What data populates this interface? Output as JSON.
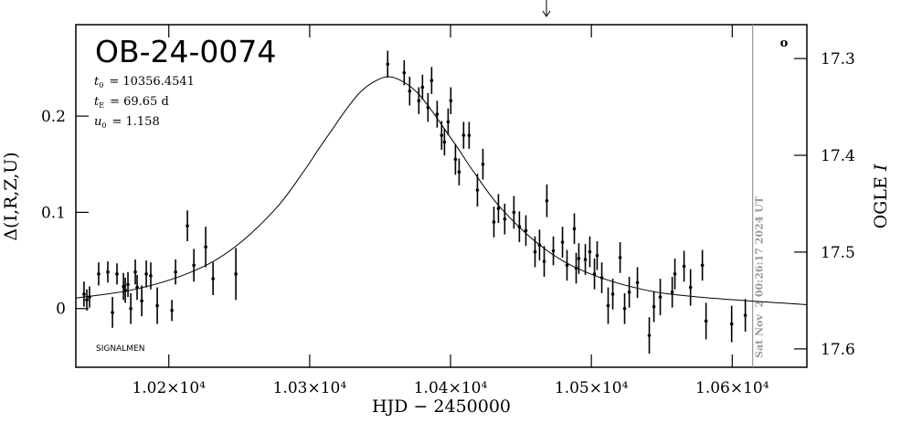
{
  "chart_data": {
    "type": "scatter",
    "title": "OB-24-0074",
    "xlabel": "HJD − 2450000",
    "ylabel": "Δ(I,R,Z,U)",
    "y2label": [
      "OGLE",
      "I"
    ],
    "annotations": [
      {
        "symbol": "t",
        "sub": "0",
        "text": "= 10356.4541"
      },
      {
        "symbol": "t",
        "sub": "E",
        "text": "= 69.65 d"
      },
      {
        "symbol": "u",
        "sub": "0",
        "text": "= 1.158"
      }
    ],
    "footnote": "SIGNALMEN",
    "corner_mark": "o",
    "timestamp": "Sat Nov  2 00:26:17 2024 UT",
    "timestamp_x": 10614.5,
    "color": "#000000",
    "xlim": [
      10134,
      10653
    ],
    "xticks": [
      {
        "value": 10200,
        "label": "1.02×10⁴"
      },
      {
        "value": 10300,
        "label": "1.03×10⁴"
      },
      {
        "value": 10400,
        "label": "1.04×10⁴"
      },
      {
        "value": 10500,
        "label": "1.05×10⁴"
      },
      {
        "value": 10600,
        "label": "1.06×10⁴"
      }
    ],
    "ylim": [
      -0.061,
      0.295
    ],
    "yticks": [
      0,
      0.1,
      0.2
    ],
    "y2lim": [
      17.619,
      17.265
    ],
    "y2ticks": [
      17.3,
      17.4,
      17.5,
      17.6
    ],
    "x": [
      10139.8,
      10141.8,
      10143.7,
      10150.2,
      10156.7,
      10160.0,
      10163.2,
      10167.8,
      10169.1,
      10171.0,
      10173.0,
      10176.2,
      10177.5,
      10180.8,
      10184.0,
      10187.2,
      10191.8,
      10202.2,
      10204.8,
      10213.2,
      10217.8,
      10226.2,
      10231.4,
      10247.6,
      10355.4,
      10367.1,
      10371.0,
      10377.5,
      10380.1,
      10384.0,
      10386.6,
      10390.5,
      10393.7,
      10395.7,
      10398.3,
      10400.2,
      10403.5,
      10406.1,
      10409.3,
      10413.2,
      10419.1,
      10423.0,
      10430.8,
      10434.0,
      10438.5,
      10445.0,
      10448.9,
      10453.5,
      10460.0,
      10463.2,
      10466.5,
      10468.4,
      10473.0,
      10479.5,
      10482.7,
      10487.9,
      10489.2,
      10491.1,
      10495.7,
      10498.9,
      10502.2,
      10504.1,
      10507.4,
      10511.9,
      10515.2,
      10520.4,
      10523.6,
      10526.9,
      10532.7,
      10541.1,
      10544.4,
      10548.9,
      10557.4,
      10559.3,
      10565.8,
      10570.4,
      10578.8,
      10581.4,
      10599.6,
      10609.3
    ],
    "values": [
      0.015,
      0.009,
      0.012,
      0.036,
      0.038,
      -0.004,
      0.036,
      0.023,
      0.019,
      0.025,
      0.0,
      0.038,
      0.022,
      0.008,
      0.036,
      0.034,
      0.003,
      -0.002,
      0.038,
      0.086,
      0.045,
      0.064,
      0.031,
      0.036,
      0.254,
      0.245,
      0.226,
      0.216,
      0.23,
      0.209,
      0.237,
      0.202,
      0.18,
      0.173,
      0.194,
      0.216,
      0.155,
      0.142,
      0.18,
      0.18,
      0.123,
      0.15,
      0.09,
      0.104,
      0.093,
      0.1,
      0.085,
      0.081,
      0.059,
      0.066,
      0.049,
      0.112,
      0.06,
      0.069,
      0.045,
      0.083,
      0.042,
      0.052,
      0.051,
      0.059,
      0.036,
      0.055,
      0.032,
      0.003,
      0.015,
      0.053,
      0.0,
      0.017,
      0.027,
      -0.028,
      0.002,
      0.012,
      0.017,
      0.036,
      0.044,
      0.022,
      0.045,
      -0.013,
      -0.016,
      -0.007
    ],
    "errors": [
      0.013,
      0.011,
      0.011,
      0.012,
      0.011,
      0.016,
      0.011,
      0.014,
      0.013,
      0.013,
      0.016,
      0.013,
      0.013,
      0.016,
      0.014,
      0.014,
      0.019,
      0.011,
      0.013,
      0.016,
      0.017,
      0.021,
      0.017,
      0.027,
      0.014,
      0.013,
      0.015,
      0.014,
      0.013,
      0.015,
      0.014,
      0.014,
      0.015,
      0.014,
      0.014,
      0.014,
      0.016,
      0.014,
      0.014,
      0.014,
      0.017,
      0.016,
      0.016,
      0.015,
      0.016,
      0.017,
      0.016,
      0.016,
      0.016,
      0.016,
      0.016,
      0.017,
      0.015,
      0.016,
      0.016,
      0.016,
      0.016,
      0.016,
      0.016,
      0.016,
      0.016,
      0.015,
      0.016,
      0.019,
      0.016,
      0.016,
      0.016,
      0.016,
      0.016,
      0.019,
      0.016,
      0.019,
      0.016,
      0.016,
      0.016,
      0.019,
      0.016,
      0.019,
      0.019,
      0.017
    ],
    "model": {
      "x": [
        10134,
        10176,
        10216,
        10246,
        10276,
        10296,
        10306,
        10316,
        10326,
        10336,
        10346,
        10356,
        10366,
        10376,
        10386,
        10396,
        10406,
        10416,
        10436,
        10466,
        10496,
        10536,
        10576,
        10653
      ],
      "values": [
        0.011,
        0.02,
        0.038,
        0.063,
        0.104,
        0.143,
        0.165,
        0.186,
        0.207,
        0.225,
        0.236,
        0.241,
        0.236,
        0.225,
        0.207,
        0.186,
        0.165,
        0.143,
        0.104,
        0.063,
        0.038,
        0.02,
        0.012,
        0.004
      ]
    }
  }
}
